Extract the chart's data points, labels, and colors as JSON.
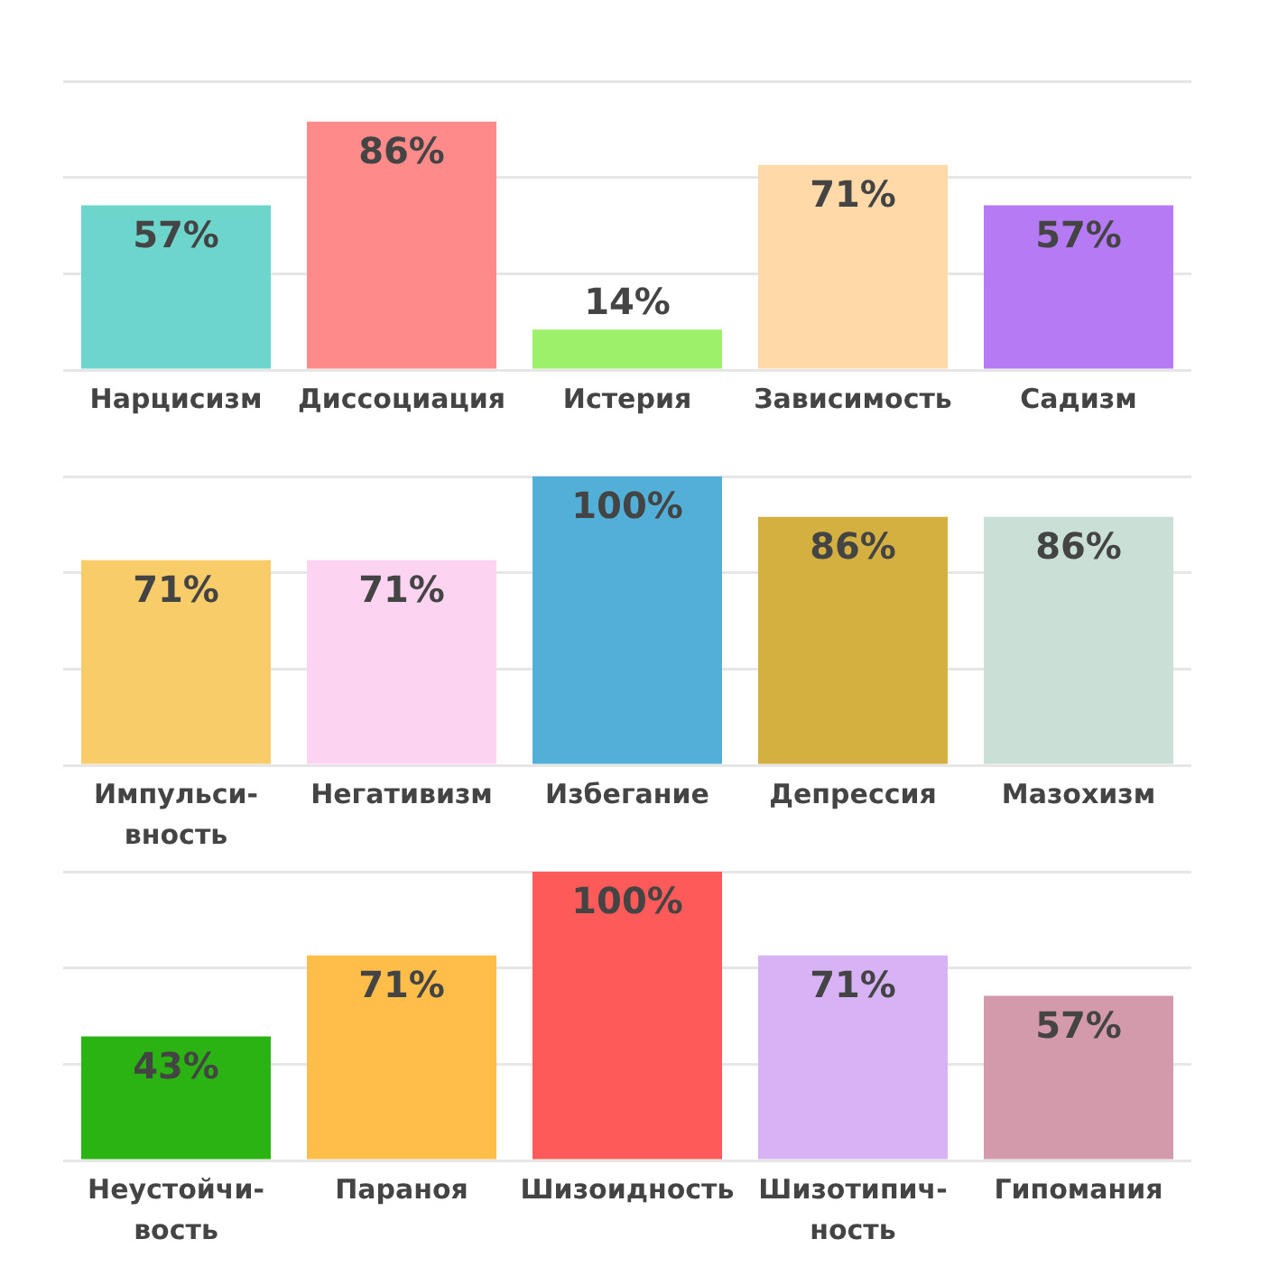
{
  "chart_data": [
    {
      "type": "bar",
      "categories": [
        "Нарцисизм",
        "Диссоциация",
        "Истерия",
        "Зависимость",
        "Садизм"
      ],
      "values": [
        57,
        86,
        14,
        71,
        57
      ],
      "value_labels": [
        "57%",
        "86%",
        "14%",
        "71%",
        "57%"
      ],
      "colors": [
        "#6dd5cb",
        "#ff8a8a",
        "#9cf06a",
        "#ffd9a8",
        "#b77af5"
      ],
      "ylim": [
        0,
        100
      ],
      "yticks": [
        {
          "value": 0,
          "label": null
        },
        {
          "value": 33.3,
          "label": null
        },
        {
          "value": 66.7,
          "label": null
        },
        {
          "value": 100,
          "label": null
        }
      ],
      "grid": "y",
      "tick_labels": "x"
    },
    {
      "type": "bar",
      "categories": [
        "Импульси-\nвность",
        "Негативизм",
        "Избегание",
        "Депрессия",
        "Мазохизм"
      ],
      "values": [
        71,
        71,
        100,
        86,
        86
      ],
      "value_labels": [
        "71%",
        "71%",
        "100%",
        "86%",
        "86%"
      ],
      "colors": [
        "#f8cc68",
        "#fcd3f0",
        "#52b0d8",
        "#d4b040",
        "#cadfd6"
      ],
      "ylim": [
        0,
        100
      ],
      "yticks": [
        {
          "value": 0,
          "label": null
        },
        {
          "value": 33.3,
          "label": null
        },
        {
          "value": 66.7,
          "label": null
        },
        {
          "value": 100,
          "label": null
        }
      ],
      "grid": "y",
      "tick_labels": "x"
    },
    {
      "type": "bar",
      "categories": [
        "Неустойчи-\nвость",
        "Параноя",
        "Шизоидность",
        "Шизотипич-\nность",
        "Гипомания"
      ],
      "values": [
        43,
        71,
        100,
        71,
        57
      ],
      "value_labels": [
        "43%",
        "71%",
        "100%",
        "71%",
        "57%"
      ],
      "colors": [
        "#2ab312",
        "#ffbd4a",
        "#ff5a5a",
        "#d7b3f5",
        "#d29aaa"
      ],
      "ylim": [
        0,
        100
      ],
      "yticks": [
        {
          "value": 0,
          "label": null
        },
        {
          "value": 33.3,
          "label": null
        },
        {
          "value": 66.7,
          "label": null
        },
        {
          "value": 100,
          "label": null
        }
      ],
      "grid": "y",
      "tick_labels": "x"
    }
  ]
}
